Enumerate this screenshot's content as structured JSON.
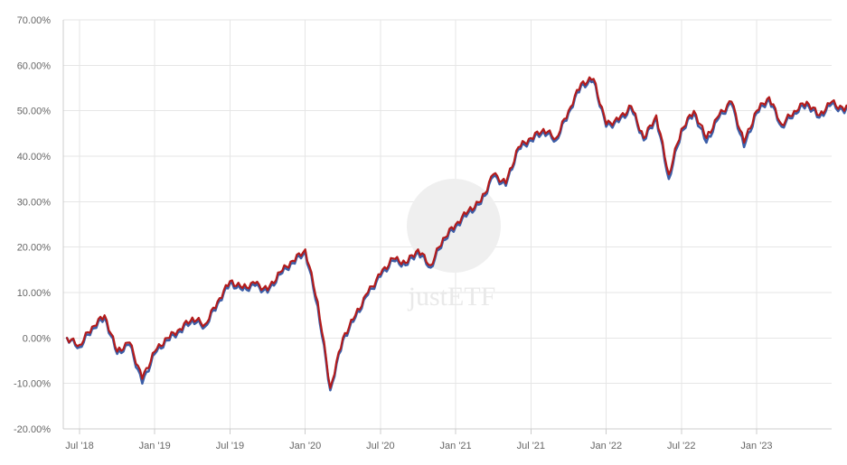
{
  "chart_data": {
    "type": "line",
    "y_tick_labels": [
      "70.00%",
      "60.00%",
      "50.00%",
      "40.00%",
      "30.00%",
      "20.00%",
      "10.00%",
      "0.00%",
      "-10.00%",
      "-20.00%"
    ],
    "ylim": [
      -20,
      70
    ],
    "y_unit": "%",
    "x_tick_labels": [
      "Jul '18",
      "Jan '19",
      "Jul '19",
      "Jan '20",
      "Jul '20",
      "Jan '21",
      "Jul '21",
      "Jan '22",
      "Jul '22",
      "Jan '23"
    ],
    "x_range": [
      "2018-06",
      "2023-11"
    ],
    "grid": true,
    "legend": "none",
    "watermark": "justETF",
    "colors": {
      "series_front": "#b31b1b",
      "series_back": "#3b5ea8",
      "grid": "#e6e6e6",
      "tick_text": "#666666",
      "watermark": "#ececec"
    },
    "series": [
      {
        "x": [
          "2018-06",
          "2018-07",
          "2018-08",
          "2018-09",
          "2018-10",
          "2018-11",
          "2018-12",
          "2019-01",
          "2019-02",
          "2019-03",
          "2019-04",
          "2019-05",
          "2019-06",
          "2019-07",
          "2019-08",
          "2019-09",
          "2019-10",
          "2019-11",
          "2019-12",
          "2020-01",
          "2020-02",
          "2020-03",
          "2020-04",
          "2020-05",
          "2020-06",
          "2020-07",
          "2020-08",
          "2020-09",
          "2020-10",
          "2020-11",
          "2020-12",
          "2021-01",
          "2021-02",
          "2021-03",
          "2021-04",
          "2021-05",
          "2021-06",
          "2021-07",
          "2021-08",
          "2021-09",
          "2021-10",
          "2021-11",
          "2021-12",
          "2022-01",
          "2022-02",
          "2022-03",
          "2022-04",
          "2022-05",
          "2022-06",
          "2022-07",
          "2022-08",
          "2022-09",
          "2022-10",
          "2022-11",
          "2022-12",
          "2023-01",
          "2023-02",
          "2023-03",
          "2023-04",
          "2023-05",
          "2023-06",
          "2023-07",
          "2023-08",
          "2023-09",
          "2023-10",
          "2023-11"
        ],
        "values": [
          0.0,
          -1.5,
          2.5,
          5.0,
          -3.0,
          -1.0,
          -9.0,
          -3.0,
          0.0,
          2.0,
          4.5,
          3.0,
          8.0,
          12.5,
          11.0,
          12.0,
          10.5,
          14.5,
          17.0,
          19.5,
          8.0,
          -11.0,
          0.0,
          5.0,
          10.0,
          14.0,
          17.5,
          16.5,
          19.5,
          16.0,
          22.0,
          25.0,
          28.0,
          30.0,
          36.0,
          34.0,
          42.0,
          44.0,
          46.0,
          44.0,
          50.0,
          56.0,
          57.0,
          47.0,
          48.0,
          51.0,
          44.0,
          49.0,
          36.0,
          46.0,
          50.0,
          44.0,
          49.0,
          52.0,
          43.0,
          50.0,
          53.0,
          47.0,
          50.0,
          52.0,
          49.0,
          52.0,
          50.0,
          53.0,
          55.0,
          54.0
        ]
      },
      {
        "x": [
          "2018-06",
          "2018-07",
          "2018-08",
          "2018-09",
          "2018-10",
          "2018-11",
          "2018-12",
          "2019-01",
          "2019-02",
          "2019-03",
          "2019-04",
          "2019-05",
          "2019-06",
          "2019-07",
          "2019-08",
          "2019-09",
          "2019-10",
          "2019-11",
          "2019-12",
          "2020-01",
          "2020-02",
          "2020-03",
          "2020-04",
          "2020-05",
          "2020-06",
          "2020-07",
          "2020-08",
          "2020-09",
          "2020-10",
          "2020-11",
          "2020-12",
          "2021-01",
          "2021-02",
          "2021-03",
          "2021-04",
          "2021-05",
          "2021-06",
          "2021-07",
          "2021-08",
          "2021-09",
          "2021-10",
          "2021-11",
          "2021-12",
          "2022-01",
          "2022-02",
          "2022-03",
          "2022-04",
          "2022-05",
          "2022-06",
          "2022-07",
          "2022-08",
          "2022-09",
          "2022-10",
          "2022-11",
          "2022-12",
          "2023-01",
          "2023-02",
          "2023-03",
          "2023-04",
          "2023-05",
          "2023-06",
          "2023-07",
          "2023-08",
          "2023-09",
          "2023-10",
          "2023-11"
        ],
        "values": [
          0.0,
          -2.0,
          2.0,
          4.5,
          -3.5,
          -1.5,
          -10.0,
          -3.5,
          -0.5,
          1.5,
          4.0,
          2.5,
          7.5,
          12.0,
          10.5,
          11.5,
          10.0,
          14.0,
          16.5,
          19.0,
          7.0,
          -11.5,
          -0.5,
          4.5,
          9.5,
          13.5,
          17.0,
          16.0,
          19.0,
          15.5,
          21.5,
          24.5,
          27.5,
          29.5,
          35.5,
          33.5,
          41.5,
          43.5,
          45.5,
          43.5,
          49.5,
          55.5,
          56.5,
          46.5,
          47.5,
          50.5,
          43.5,
          48.5,
          35.0,
          45.5,
          49.5,
          43.0,
          48.5,
          51.5,
          42.0,
          49.5,
          52.5,
          46.5,
          49.5,
          51.5,
          48.5,
          51.5,
          49.5,
          52.5,
          54.5,
          53.5
        ]
      }
    ]
  }
}
